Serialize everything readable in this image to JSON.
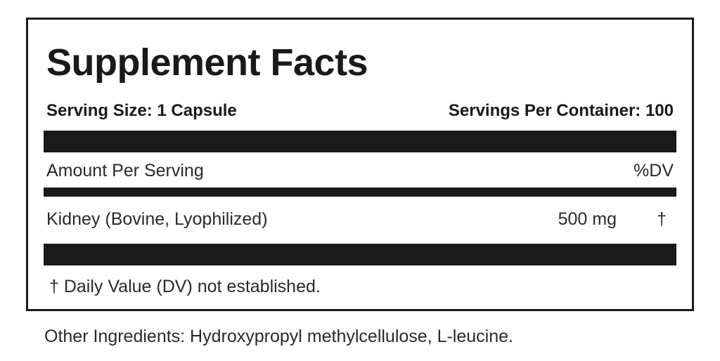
{
  "label": {
    "title": "Supplement Facts",
    "serving_size": "Serving Size: 1 Capsule",
    "servings_per_container": "Servings Per Container: 100",
    "amount_header": "Amount Per Serving",
    "dv_header": "%DV",
    "ingredients": [
      {
        "name": "Kidney (Bovine, Lyophilized)",
        "amount": "500 mg",
        "dv": "†"
      }
    ],
    "footnote": "† Daily Value (DV) not established."
  },
  "other_ingredients": "Other Ingredients: Hydroxypropyl methylcellulose, L-leucine."
}
